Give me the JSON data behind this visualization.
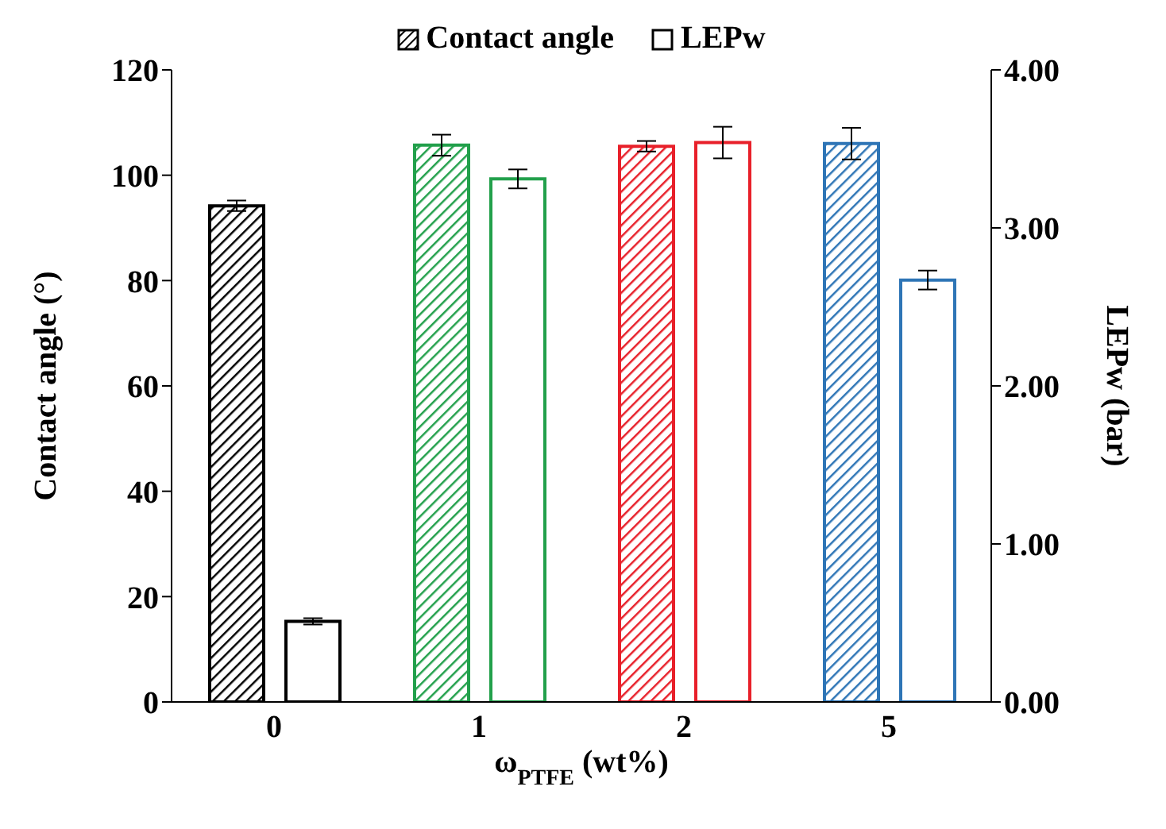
{
  "chart_data": {
    "type": "bar",
    "categories": [
      "0",
      "1",
      "2",
      "5"
    ],
    "xlabel": "ω$_{PTFE}$ (wt%)",
    "ylabel": "Contact angle (°)",
    "y2label": "LEPw (bar)",
    "ylim": [
      0,
      120
    ],
    "yticks": [
      0,
      20,
      40,
      60,
      80,
      100,
      120
    ],
    "y2lim": [
      0,
      4
    ],
    "y2ticks": [
      {
        "value": 0,
        "label": "0.00"
      },
      {
        "value": 1,
        "label": "1.00"
      },
      {
        "value": 2,
        "label": "2.00"
      },
      {
        "value": 3,
        "label": "3.00"
      },
      {
        "value": 4,
        "label": "4.00"
      }
    ],
    "legend": "top",
    "grid": false,
    "series": [
      {
        "name": "Contact angle",
        "color": "#000000",
        "colors": [
          "#000000",
          "#22a04b",
          "#e8202a",
          "#2e75b6"
        ],
        "values": [
          94.2,
          105.7,
          105.5,
          106
        ],
        "errors": [
          1,
          2,
          1,
          3
        ]
      },
      {
        "name": "LEPw",
        "axis": "y2",
        "color": "#000000",
        "colors": [
          "#000000",
          "#22a04b",
          "#e8202a",
          "#2e75b6"
        ],
        "values": [
          0.51,
          3.31,
          3.54,
          2.67
        ],
        "errors": [
          0.02,
          0.06,
          0.1,
          0.06
        ]
      }
    ]
  }
}
